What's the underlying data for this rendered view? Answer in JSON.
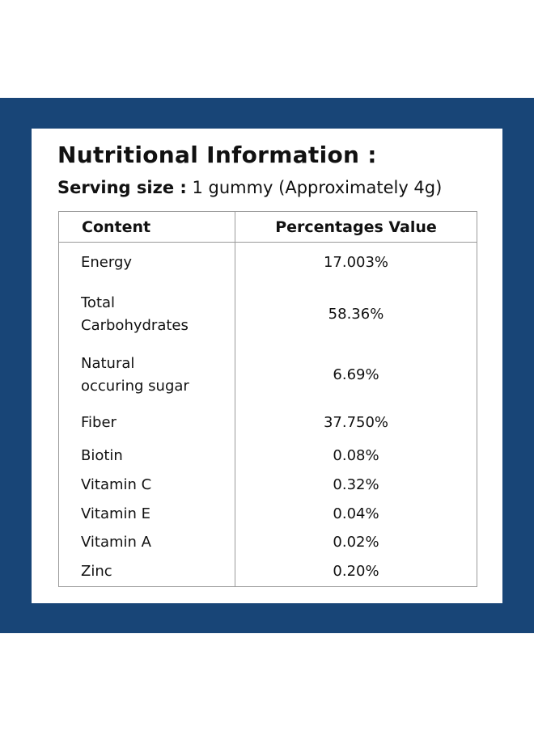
{
  "colors": {
    "frame": "#184577",
    "card": "#ffffff",
    "text": "#111111",
    "grid": "#9a9a9a"
  },
  "title": "Nutritional  Information :",
  "serving": {
    "label": "Serving size :",
    "value": "1 gummy (Approximately 4g)"
  },
  "table": {
    "headers": {
      "content": "Content",
      "value": "Percentages  Value"
    },
    "rows": [
      {
        "name": "Energy",
        "value": "17.003%"
      },
      {
        "name_line1": "Total",
        "name_line2": "Carbohydrates",
        "value": "58.36%"
      },
      {
        "name_line1": "Natural",
        "name_line2": "occuring sugar",
        "value": "6.69%"
      },
      {
        "name": "Fiber",
        "value": "37.750%"
      },
      {
        "name": "Biotin",
        "value": "0.08%"
      },
      {
        "name": "Vitamin C",
        "value": "0.32%"
      },
      {
        "name": "Vitamin E",
        "value": "0.04%"
      },
      {
        "name": "Vitamin A",
        "value": "0.02%"
      },
      {
        "name": "Zinc",
        "value": "0.20%"
      }
    ]
  }
}
